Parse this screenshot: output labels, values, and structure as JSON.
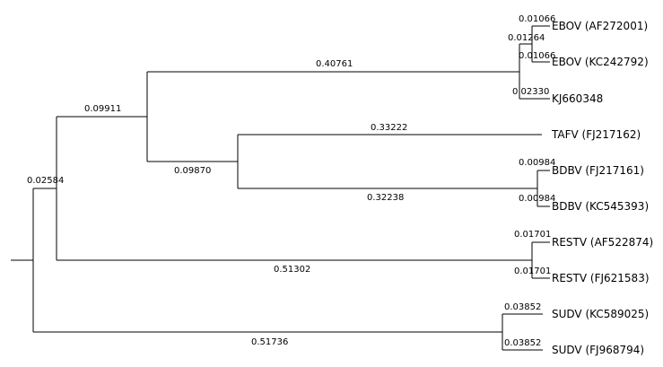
{
  "tree": {
    "taxa": [
      "EBOV (AF272001)",
      "EBOV (KC242792)",
      "KJ660348",
      "TAFV (FJ217162)",
      "BDBV (FJ217161)",
      "BDBV (KC545393)",
      "RESTV (AF522874)",
      "RESTV (FJ621583)",
      "SUDV (KC589025)",
      "SUDV (FJ968794)"
    ],
    "branch_labels": {
      "ebov_af272001": "0.01066",
      "ebov_kc242792": "0.01066",
      "ebov_pair": "0.01264",
      "kj660348": "0.02330",
      "ebov_clade": "0.40761",
      "ebov_tafv_bdbv": "0.09911",
      "tafv": "0.33222",
      "tafv_bdbv": "0.09870",
      "bdbv_fj217161": "0.00984",
      "bdbv_kc545393": "0.00984",
      "bdbv_clade": "0.32238",
      "restv_af522874": "0.01701",
      "restv_fj621583": "0.01701",
      "restv_clade": "0.51302",
      "upper_group": "0.02584",
      "sudv_kc589025": "0.03852",
      "sudv_fj968794": "0.03852",
      "sudv_clade": "0.51736"
    }
  }
}
